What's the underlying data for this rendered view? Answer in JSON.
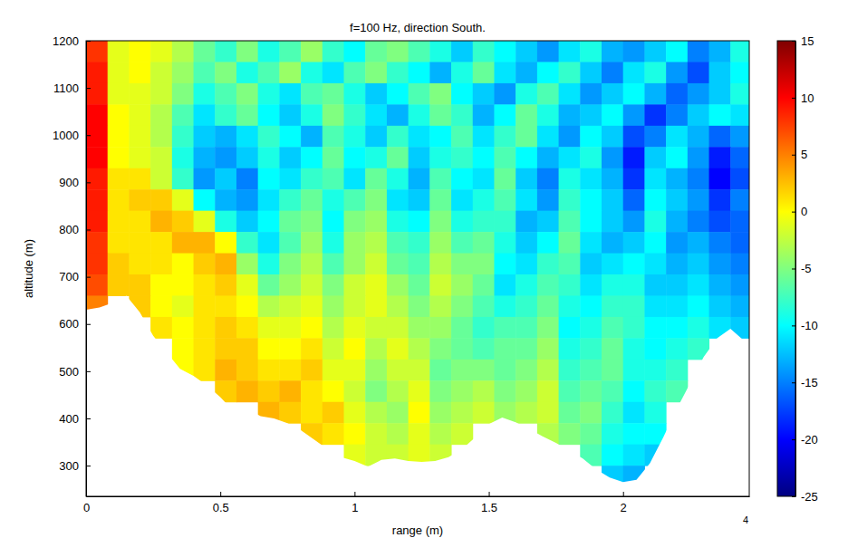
{
  "chart_data": {
    "type": "heatmap",
    "title": "f=100 Hz, direction South.",
    "x_label": "range (m)",
    "y_label": "altitude (m)",
    "annotations": [
      "4"
    ],
    "xlim": [
      0,
      2.47
    ],
    "ylim": [
      235,
      1200
    ],
    "xticks": [
      0,
      0.5,
      1,
      1.5,
      2
    ],
    "yticks": [
      300,
      400,
      500,
      600,
      700,
      800,
      900,
      1000,
      1100,
      1200
    ],
    "colorbar": {
      "range": [
        -25,
        15
      ],
      "ticks": [
        -25,
        -20,
        -15,
        -10,
        -5,
        0,
        5,
        10,
        15
      ]
    },
    "x": [
      0.04,
      0.12,
      0.2,
      0.28,
      0.36,
      0.44,
      0.52,
      0.6,
      0.68,
      0.76,
      0.84,
      0.92,
      1.0,
      1.08,
      1.16,
      1.24,
      1.32,
      1.4,
      1.48,
      1.56,
      1.64,
      1.72,
      1.8,
      1.88,
      1.96,
      2.04,
      2.12,
      2.2,
      2.28,
      2.36,
      2.44
    ],
    "y": [
      1177.5,
      1132.5,
      1087.5,
      1042.5,
      997.5,
      952.5,
      907.5,
      862.5,
      817.5,
      772.5,
      727.5,
      682.5,
      637.5,
      592.5,
      547.5,
      502.5,
      457.5,
      412.5,
      367.5,
      322.5,
      277.5
    ],
    "values": [
      [
        8,
        -1,
        0,
        -1,
        -3,
        -6,
        -8,
        -5,
        -9,
        -7,
        -4,
        -8,
        -10,
        -6,
        -5,
        -7,
        -9,
        -12,
        -8,
        -10,
        -12,
        -14,
        -11,
        -9,
        -13,
        -14,
        -12,
        -10,
        -15,
        -13,
        -9
      ],
      [
        9,
        -1,
        0,
        -2,
        -4,
        -7,
        -5,
        -9,
        -7,
        -4,
        -9,
        -11,
        -7,
        -5,
        -8,
        -10,
        -13,
        -9,
        -6,
        -11,
        -13,
        -10,
        -8,
        -12,
        -15,
        -11,
        -9,
        -14,
        -17,
        -12,
        -10
      ],
      [
        9,
        -1,
        -1,
        -2,
        -5,
        -9,
        -7,
        -5,
        -9,
        -11,
        -7,
        -6,
        -9,
        -12,
        -10,
        -7,
        -5,
        -10,
        -12,
        -14,
        -9,
        -7,
        -11,
        -14,
        -12,
        -10,
        -13,
        -16,
        -14,
        -12,
        -9
      ],
      [
        10,
        0,
        -1,
        -3,
        -7,
        -11,
        -8,
        -6,
        -10,
        -12,
        -9,
        -5,
        -8,
        -11,
        -13,
        -9,
        -6,
        -8,
        -13,
        -10,
        -6,
        -9,
        -13,
        -12,
        -10,
        -14,
        -18,
        -15,
        -12,
        -10,
        -11
      ],
      [
        10,
        0,
        -1,
        -3,
        -8,
        -12,
        -13,
        -11,
        -8,
        -10,
        -13,
        -7,
        -9,
        -12,
        -8,
        -11,
        -10,
        -7,
        -11,
        -8,
        -6,
        -11,
        -14,
        -10,
        -12,
        -17,
        -15,
        -11,
        -13,
        -16,
        -14
      ],
      [
        10,
        0,
        -1,
        -2,
        -9,
        -13,
        -14,
        -12,
        -9,
        -12,
        -10,
        -6,
        -10,
        -9,
        -6,
        -12,
        -9,
        -8,
        -10,
        -7,
        -10,
        -13,
        -11,
        -9,
        -14,
        -19,
        -12,
        -10,
        -14,
        -19,
        -16
      ],
      [
        9,
        1,
        1,
        -2,
        -8,
        -14,
        -12,
        -15,
        -10,
        -11,
        -8,
        -7,
        -11,
        -6,
        -9,
        -13,
        -7,
        -10,
        -11,
        -6,
        -12,
        -15,
        -9,
        -11,
        -13,
        -18,
        -11,
        -13,
        -15,
        -20,
        -17
      ],
      [
        9,
        1,
        2,
        2,
        -1,
        -10,
        -13,
        -14,
        -11,
        -8,
        -6,
        -9,
        -7,
        -5,
        -11,
        -12,
        -6,
        -11,
        -9,
        -7,
        -11,
        -14,
        -8,
        -10,
        -12,
        -16,
        -10,
        -12,
        -14,
        -18,
        -15
      ],
      [
        9,
        1,
        1,
        3,
        2,
        -1,
        -9,
        -12,
        -10,
        -6,
        -5,
        -10,
        -5,
        -4,
        -9,
        -10,
        -5,
        -9,
        -8,
        -8,
        -13,
        -12,
        -7,
        -10,
        -12,
        -14,
        -9,
        -13,
        -15,
        -17,
        -16
      ],
      [
        8,
        1,
        1,
        1,
        3,
        3,
        0,
        -8,
        -11,
        -7,
        -4,
        -9,
        -4,
        -3,
        -7,
        -8,
        -4,
        -7,
        -6,
        -9,
        -12,
        -10,
        -6,
        -11,
        -13,
        -12,
        -10,
        -14,
        -13,
        -15,
        -16
      ],
      [
        8,
        2,
        1,
        1,
        0,
        2,
        3,
        -4,
        -9,
        -5,
        -3,
        -7,
        -4,
        -2,
        -6,
        -7,
        -3,
        -5,
        -5,
        -10,
        -11,
        -8,
        -7,
        -12,
        -11,
        -10,
        -11,
        -13,
        -12,
        -14,
        -15
      ],
      [
        7,
        2,
        2,
        0,
        0,
        1,
        2,
        -1,
        -6,
        -4,
        -2,
        -5,
        -2,
        -1,
        -4,
        -6,
        -2,
        -4,
        -6,
        -11,
        -9,
        -7,
        -8,
        -11,
        -9,
        -9,
        -12,
        -12,
        -11,
        -13,
        -14
      ],
      [
        5,
        null,
        2,
        0,
        -1,
        1,
        1,
        0,
        -3,
        -2,
        -1,
        -4,
        -2,
        -1,
        -3,
        -5,
        -3,
        -5,
        -7,
        -9,
        -8,
        -6,
        -9,
        -10,
        -8,
        -8,
        -11,
        -11,
        -10,
        -12,
        -13
      ],
      [
        null,
        null,
        null,
        1,
        0,
        1,
        2,
        1,
        -1,
        -1,
        0,
        -3,
        -1,
        -2,
        -2,
        -4,
        -4,
        -6,
        -8,
        -7,
        -7,
        -5,
        -10,
        -9,
        -7,
        -8,
        -10,
        -10,
        -9,
        -11,
        -12
      ],
      [
        null,
        null,
        null,
        null,
        0,
        1,
        2,
        2,
        0,
        0,
        1,
        -2,
        0,
        -3,
        -1,
        -3,
        -5,
        -6,
        -7,
        -6,
        -6,
        -4,
        -9,
        -8,
        -6,
        -9,
        -10,
        -9,
        -8,
        null,
        null
      ],
      [
        null,
        null,
        null,
        null,
        0,
        1,
        3,
        2,
        1,
        1,
        2,
        -1,
        -1,
        -4,
        -2,
        -2,
        -6,
        -5,
        -5,
        -6,
        -5,
        -3,
        -8,
        -7,
        -6,
        -9,
        -9,
        -8,
        null,
        null,
        null
      ],
      [
        null,
        null,
        null,
        null,
        null,
        null,
        2,
        3,
        2,
        3,
        1,
        0,
        -2,
        -5,
        -3,
        -1,
        -5,
        -4,
        -3,
        -5,
        -4,
        -2,
        -7,
        -6,
        -7,
        -10,
        -8,
        -7,
        null,
        null,
        null
      ],
      [
        null,
        null,
        null,
        null,
        null,
        null,
        null,
        null,
        3,
        2,
        1,
        2,
        -1,
        -3,
        -4,
        0,
        -4,
        -3,
        -2,
        -4,
        -3,
        -2,
        -6,
        -5,
        -8,
        -11,
        -9,
        null,
        null,
        null,
        null
      ],
      [
        null,
        null,
        null,
        null,
        null,
        null,
        null,
        null,
        null,
        null,
        2,
        1,
        0,
        -2,
        -3,
        -1,
        -3,
        -2,
        null,
        null,
        null,
        -3,
        -5,
        -6,
        -9,
        -10,
        -10,
        null,
        null,
        null,
        null
      ],
      [
        null,
        null,
        null,
        null,
        null,
        null,
        null,
        null,
        null,
        null,
        null,
        null,
        -1,
        -2,
        -2,
        -1,
        -2,
        null,
        null,
        null,
        null,
        null,
        null,
        -7,
        -10,
        -11,
        -12,
        null,
        null,
        null,
        null
      ],
      [
        null,
        null,
        null,
        null,
        null,
        null,
        null,
        null,
        null,
        null,
        null,
        null,
        null,
        null,
        null,
        null,
        null,
        null,
        null,
        null,
        null,
        null,
        null,
        null,
        -12,
        -13,
        null,
        null,
        null,
        null,
        null
      ]
    ],
    "terrain": {
      "x": [
        0,
        0.05,
        0.1,
        0.15,
        0.2,
        0.25,
        0.3,
        0.35,
        0.4,
        0.45,
        0.5,
        0.55,
        0.6,
        0.65,
        0.7,
        0.75,
        0.8,
        0.85,
        0.9,
        0.95,
        1.0,
        1.05,
        1.1,
        1.15,
        1.2,
        1.25,
        1.3,
        1.35,
        1.4,
        1.45,
        1.5,
        1.55,
        1.6,
        1.65,
        1.7,
        1.75,
        1.8,
        1.85,
        1.9,
        1.95,
        2.0,
        2.05,
        2.1,
        2.15,
        2.2,
        2.25,
        2.3,
        2.35,
        2.4,
        2.45,
        2.47
      ],
      "altitude": [
        630,
        635,
        645,
        660,
        625,
        575,
        540,
        505,
        490,
        470,
        445,
        415,
        420,
        405,
        400,
        390,
        375,
        355,
        335,
        318,
        310,
        298,
        312,
        315,
        310,
        308,
        310,
        318,
        335,
        360,
        388,
        402,
        392,
        378,
        362,
        348,
        332,
        315,
        292,
        275,
        265,
        270,
        305,
        360,
        420,
        475,
        530,
        570,
        590,
        565,
        530
      ]
    }
  }
}
